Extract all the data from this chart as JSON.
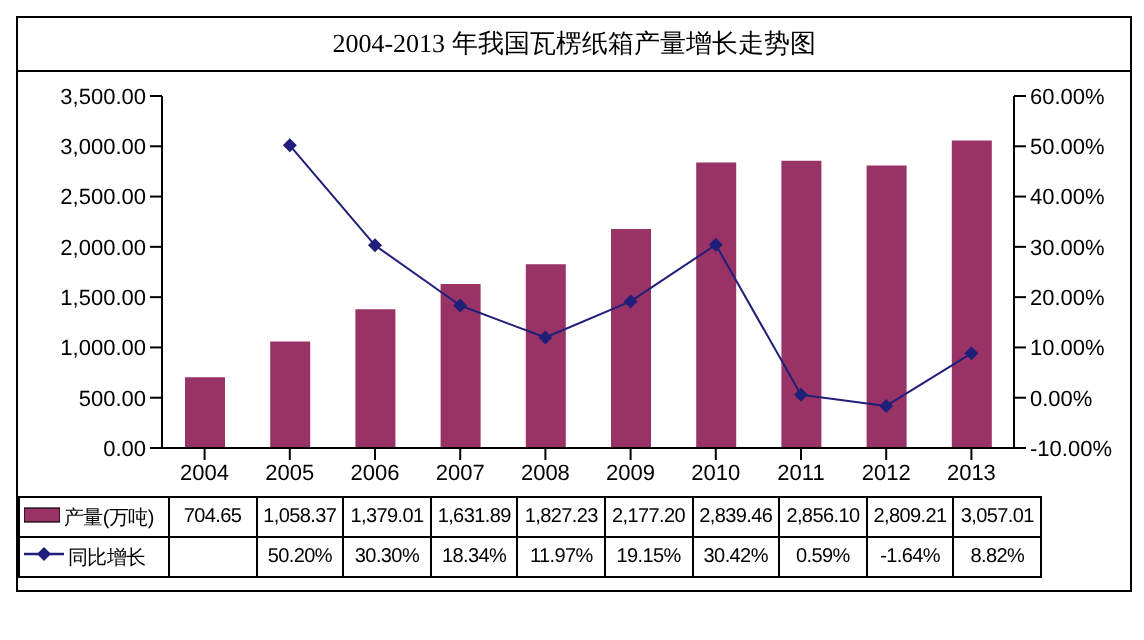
{
  "chart_data": {
    "type": "bar",
    "title": "2004-2013 年我国瓦楞纸箱产量增长走势图",
    "categories": [
      "2004",
      "2005",
      "2006",
      "2007",
      "2008",
      "2009",
      "2010",
      "2011",
      "2012",
      "2013"
    ],
    "series": [
      {
        "name": "产量(万吨)",
        "color": "#993366",
        "values": [
          704.65,
          1058.37,
          1379.01,
          1631.89,
          1827.23,
          2177.2,
          2839.46,
          2856.1,
          2809.21,
          3057.01
        ],
        "value_labels": [
          "704.65",
          "1,058.37",
          "1,379.01",
          "1,631.89",
          "1,827.23",
          "2,177.20",
          "2,839.46",
          "2,856.10",
          "2,809.21",
          "3,057.01"
        ]
      },
      {
        "name": "同比增长",
        "type": "line",
        "axis": "y2",
        "color": "#1f1f7a",
        "marker": "diamond",
        "values": [
          null,
          50.2,
          30.3,
          18.34,
          11.97,
          19.15,
          30.42,
          0.59,
          -1.64,
          8.82
        ],
        "value_labels": [
          null,
          "50.20%",
          "30.30%",
          "18.34%",
          "11.97%",
          "19.15%",
          "30.42%",
          "0.59%",
          "-1.64%",
          "8.82%"
        ]
      }
    ],
    "ylim": [
      0,
      3500
    ],
    "yticks": [
      {
        "value": 0,
        "label": "0.00"
      },
      {
        "value": 500,
        "label": "500.00"
      },
      {
        "value": 1000,
        "label": "1,000.00"
      },
      {
        "value": 1500,
        "label": "1,500.00"
      },
      {
        "value": 2000,
        "label": "2,000.00"
      },
      {
        "value": 2500,
        "label": "2,500.00"
      },
      {
        "value": 3000,
        "label": "3,000.00"
      },
      {
        "value": 3500,
        "label": "3,500.00"
      }
    ],
    "y2lim": [
      -10,
      60
    ],
    "y2ticks": [
      {
        "value": -10,
        "label": "-10.00%"
      },
      {
        "value": 0,
        "label": "0.00%"
      },
      {
        "value": 10,
        "label": "10.00%"
      },
      {
        "value": 20,
        "label": "20.00%"
      },
      {
        "value": 30,
        "label": "30.00%"
      },
      {
        "value": 40,
        "label": "40.00%"
      },
      {
        "value": 50,
        "label": "50.00%"
      },
      {
        "value": 60,
        "label": "60.00%"
      }
    ],
    "data_labels": true,
    "legend": "bottom"
  }
}
